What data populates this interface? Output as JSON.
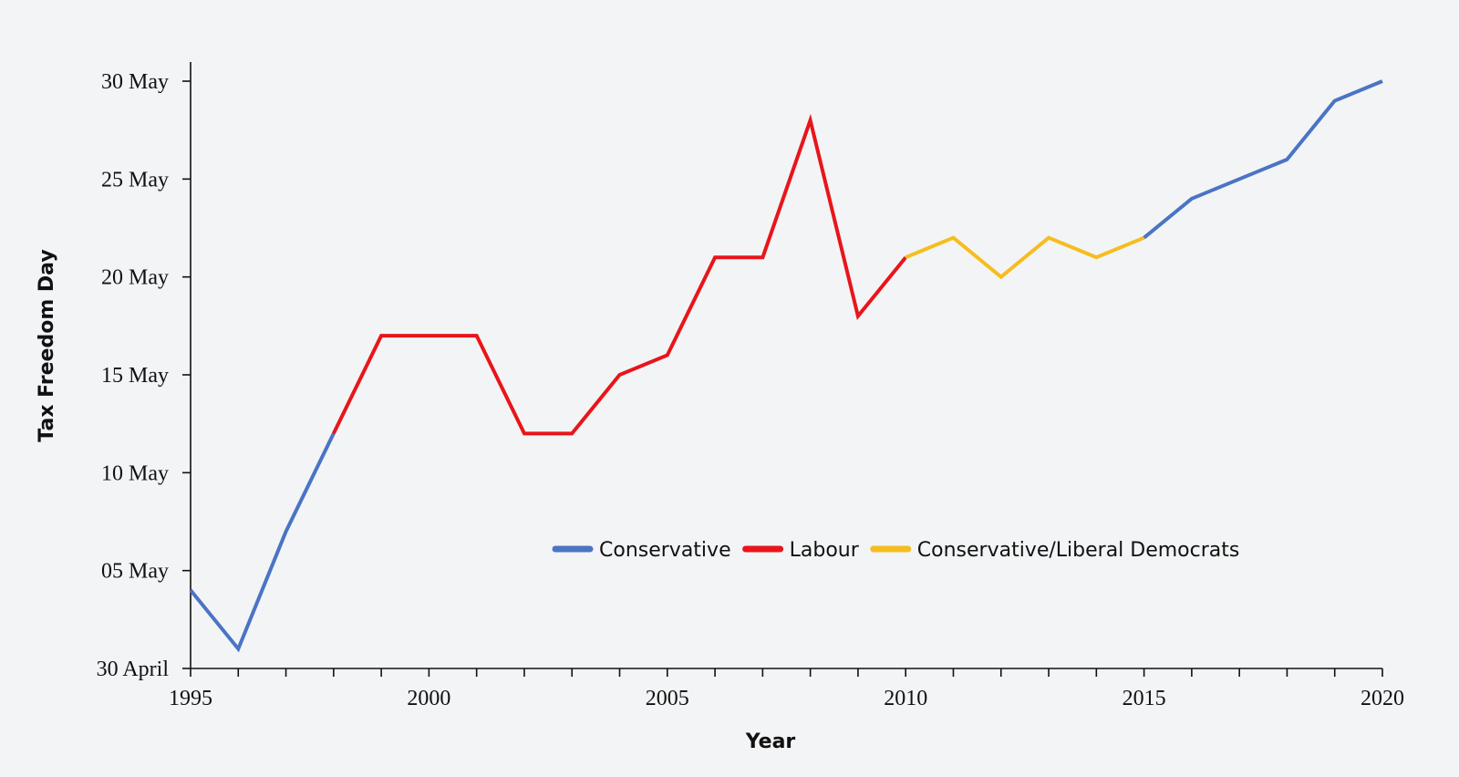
{
  "chart_data": {
    "type": "line",
    "title": "",
    "xlabel": "Year",
    "ylabel": "Tax Freedom Day",
    "xlim": [
      1995,
      2020
    ],
    "ylim": [
      "30 April",
      "30 May"
    ],
    "x_ticks": [
      "1995",
      "2000",
      "2005",
      "2010",
      "2015",
      "2020"
    ],
    "y_ticks": [
      "30 April",
      "05 May",
      "10 May",
      "15 May",
      "20 May",
      "25 May",
      "30 May"
    ],
    "grid": false,
    "legend_position": "center",
    "series": [
      {
        "name": "Conservative",
        "color": "#4a74c5",
        "points": [
          {
            "x": 1995,
            "y": "4 May"
          },
          {
            "x": 1996,
            "y": "1 May"
          },
          {
            "x": 1997,
            "y": "7 May"
          },
          {
            "x": 1998,
            "y": "12 May"
          }
        ]
      },
      {
        "name": "Labour",
        "color": "#e8151b",
        "points": [
          {
            "x": 1998,
            "y": "12 May"
          },
          {
            "x": 1999,
            "y": "17 May"
          },
          {
            "x": 2000,
            "y": "17 May"
          },
          {
            "x": 2001,
            "y": "17 May"
          },
          {
            "x": 2002,
            "y": "12 May"
          },
          {
            "x": 2003,
            "y": "12 May"
          },
          {
            "x": 2004,
            "y": "15 May"
          },
          {
            "x": 2005,
            "y": "16 May"
          },
          {
            "x": 2006,
            "y": "21 May"
          },
          {
            "x": 2007,
            "y": "21 May"
          },
          {
            "x": 2008,
            "y": "28 May"
          },
          {
            "x": 2009,
            "y": "18 May"
          },
          {
            "x": 2010,
            "y": "21 May"
          }
        ]
      },
      {
        "name": "Conservative/Liberal Democrats",
        "color": "#f5bd1f",
        "points": [
          {
            "x": 2010,
            "y": "21 May"
          },
          {
            "x": 2011,
            "y": "22 May"
          },
          {
            "x": 2012,
            "y": "20 May"
          },
          {
            "x": 2013,
            "y": "22 May"
          },
          {
            "x": 2014,
            "y": "21 May"
          },
          {
            "x": 2015,
            "y": "22 May"
          }
        ]
      },
      {
        "name": "Conservative",
        "color": "#4a74c5",
        "points": [
          {
            "x": 2015,
            "y": "22 May"
          },
          {
            "x": 2016,
            "y": "24 May"
          },
          {
            "x": 2017,
            "y": "25 May"
          },
          {
            "x": 2018,
            "y": "26 May"
          },
          {
            "x": 2019,
            "y": "29 May"
          },
          {
            "x": 2020,
            "y": "30 May"
          }
        ]
      }
    ],
    "legend": [
      {
        "label": "Conservative",
        "color": "#4a74c5"
      },
      {
        "label": "Labour",
        "color": "#e8151b"
      },
      {
        "label": "Conservative/Liberal Democrats",
        "color": "#f5bd1f"
      }
    ]
  }
}
